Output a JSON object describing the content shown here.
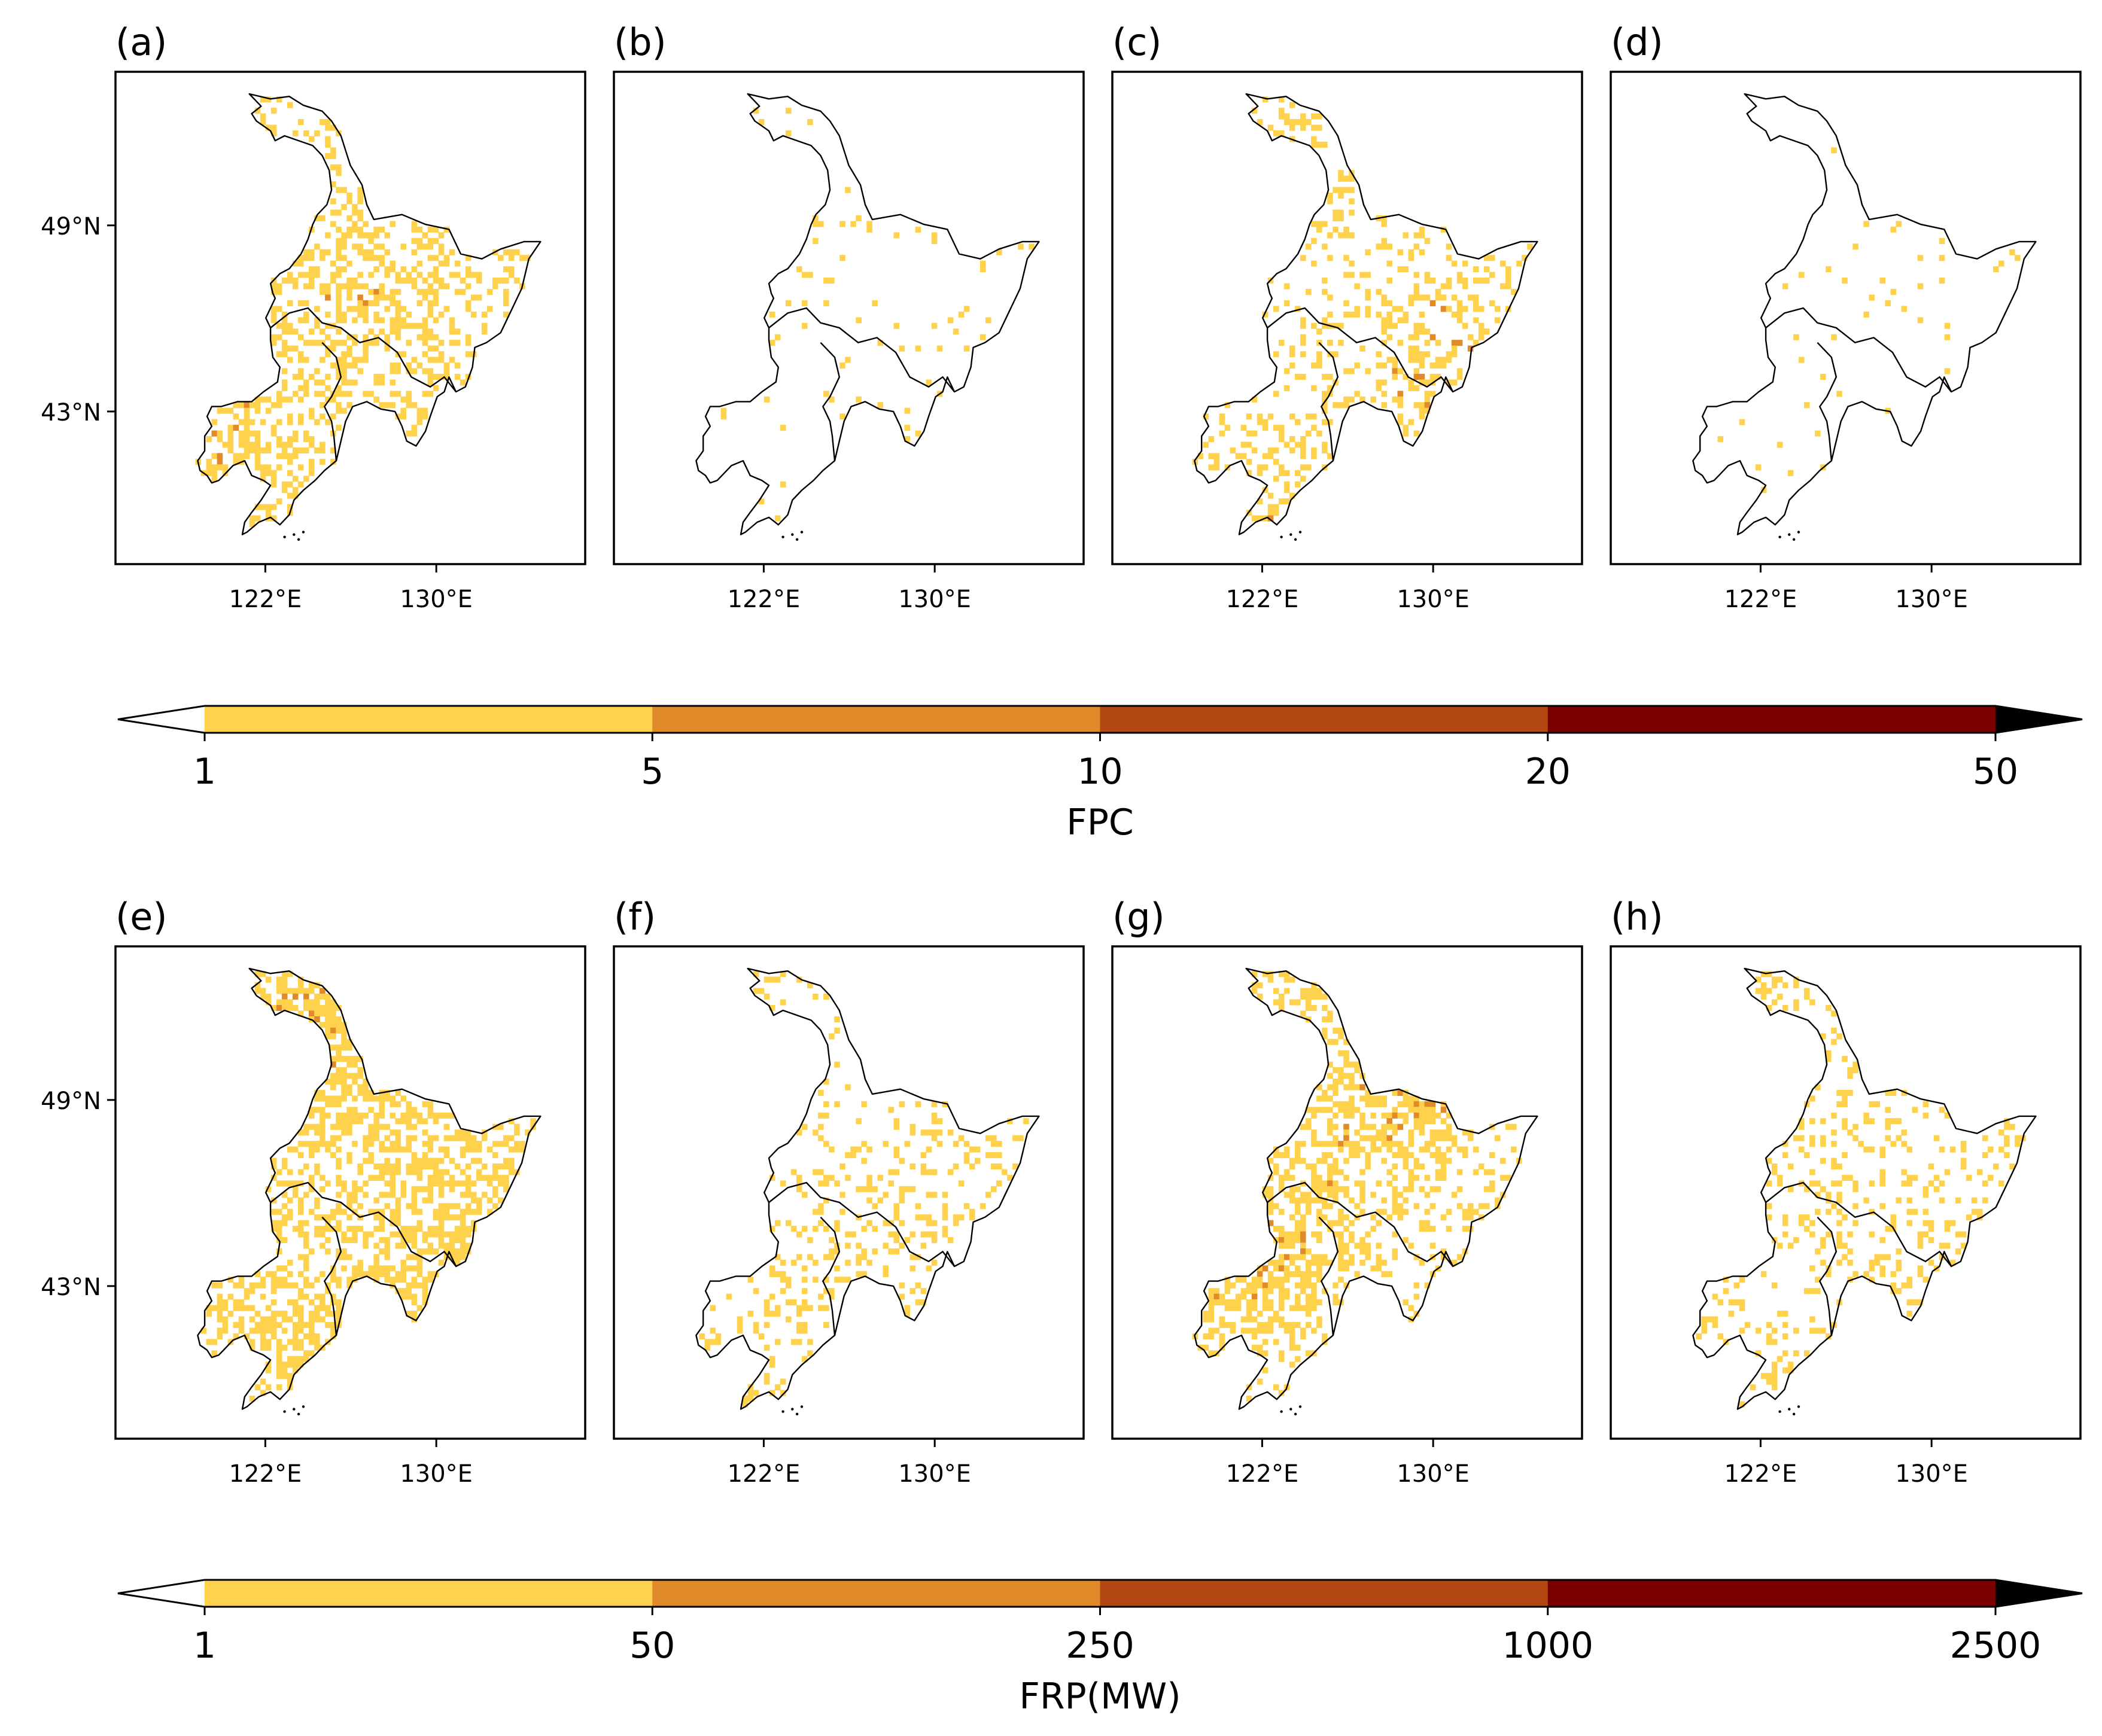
{
  "figure": {
    "rows": [
      {
        "panels": [
          {
            "label": "(a)",
            "density": 0.34,
            "darkness": 0.55
          },
          {
            "label": "(b)",
            "density": 0.05,
            "darkness": 0.25
          },
          {
            "label": "(c)",
            "density": 0.22,
            "darkness": 0.45
          },
          {
            "label": "(d)",
            "density": 0.015,
            "darkness": 0.3
          }
        ],
        "colorbar": {
          "label": "FPC",
          "ticks": [
            "1",
            "5",
            "10",
            "20",
            "50"
          ]
        }
      },
      {
        "panels": [
          {
            "label": "(e)",
            "density": 0.52,
            "darkness": 0.6
          },
          {
            "label": "(f)",
            "density": 0.16,
            "darkness": 0.25
          },
          {
            "label": "(g)",
            "density": 0.4,
            "darkness": 0.55
          },
          {
            "label": "(h)",
            "density": 0.2,
            "darkness": 0.3
          }
        ],
        "colorbar": {
          "label": "FRP(MW)",
          "ticks": [
            "1",
            "50",
            "250",
            "1000",
            "2500"
          ]
        }
      }
    ],
    "lat_ticks": [
      "49°N",
      "43°N"
    ],
    "lon_ticks": [
      "122°E",
      "130°E"
    ],
    "palette": [
      "#ffd24d",
      "#e08a2a",
      "#b34711",
      "#7a0000"
    ],
    "under_color": "#ffffff",
    "over_color": "#000000"
  }
}
